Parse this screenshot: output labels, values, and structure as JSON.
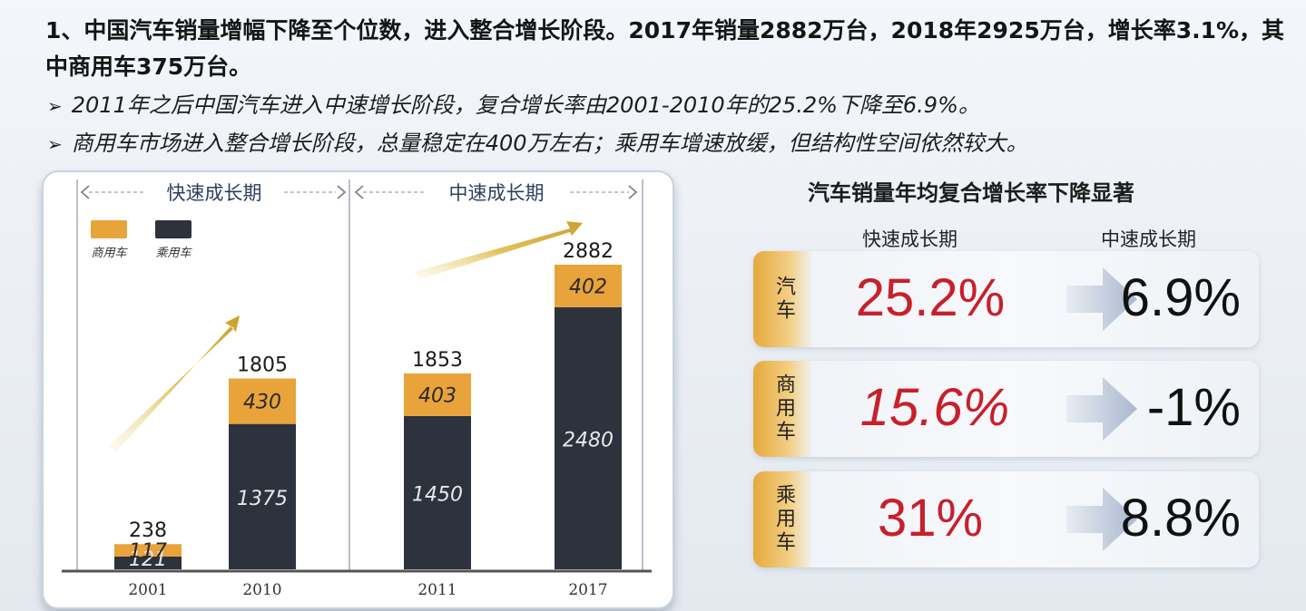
{
  "headline": "1、中国汽车销量增幅下降至个位数，进入整合增长阶段。2017年销量2882万台，2018年2925万台，增长率3.1%，其中商用车375万台。",
  "bullets": [
    "2011年之后中国汽车进入中速增长阶段，复合增长率由2001-2010年的25.2%下降至6.9%。",
    "商用车市场进入整合增长阶段，总量稳定在400万左右；乘用车增速放缓，但结构性空间依然较大。"
  ],
  "bullet_marker": "➢",
  "chart_data": {
    "type": "bar",
    "stacked": true,
    "categories": [
      "2001",
      "2010",
      "2011",
      "2017"
    ],
    "series": [
      {
        "name": "乘用车",
        "values": [
          121,
          1375,
          1450,
          2480
        ],
        "color": "#2e323d"
      },
      {
        "name": "商用车",
        "values": [
          117,
          430,
          403,
          402
        ],
        "color": "#e8a33b"
      }
    ],
    "totals": [
      238,
      1805,
      1853,
      2882
    ],
    "phases": [
      {
        "label": "快速成长期",
        "categories": [
          "2001",
          "2010"
        ]
      },
      {
        "label": "中速成长期",
        "categories": [
          "2011",
          "2017"
        ]
      }
    ],
    "legend_placement": "top-left",
    "grid": false,
    "ylim": [
      0,
      3000
    ]
  },
  "rates": {
    "title": "汽车销量年均复合增长率下降显著",
    "phase_fast": "快速成长期",
    "phase_mid": "中速成长期",
    "rows": [
      {
        "tag": "汽车",
        "fast": "25.2%",
        "mid": "6.9%"
      },
      {
        "tag": "商用车",
        "fast": "15.6%",
        "mid": "-1%"
      },
      {
        "tag": "乘用车",
        "fast": "31%",
        "mid": "8.8%"
      }
    ],
    "colors": {
      "fast": "#c8202b",
      "mid": "#111111",
      "tag": "#e6a93c"
    }
  }
}
